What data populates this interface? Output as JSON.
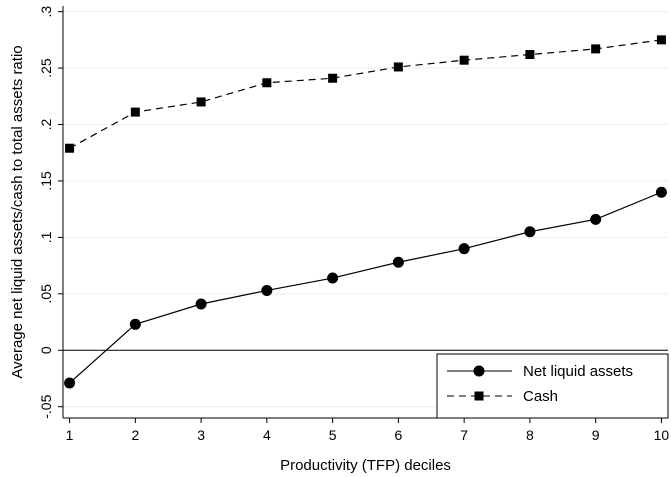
{
  "chart_data": {
    "type": "line",
    "xlabel": "Productivity (TFP) deciles",
    "ylabel": "Average net liquid assets/cash to total assets ratio",
    "x": [
      1,
      2,
      3,
      4,
      5,
      6,
      7,
      8,
      9,
      10
    ],
    "x_tick_labels": [
      "1",
      "2",
      "3",
      "4",
      "5",
      "6",
      "7",
      "8",
      "9",
      "10"
    ],
    "y_ticks": [
      -0.05,
      0,
      0.05,
      0.1,
      0.15,
      0.2,
      0.25,
      0.3
    ],
    "y_tick_labels": [
      "-.05",
      "0",
      ".05",
      ".1",
      ".15",
      ".2",
      ".25",
      ".3"
    ],
    "xlim": [
      0.9,
      10.1
    ],
    "ylim": [
      -0.06,
      0.305
    ],
    "zero_line": true,
    "grid": "horizontal",
    "legend_position": "bottom-right",
    "series": [
      {
        "name": "Net liquid assets",
        "marker": "circle",
        "line_style": "solid",
        "color": "#000000",
        "values": [
          -0.029,
          0.023,
          0.041,
          0.053,
          0.064,
          0.078,
          0.09,
          0.105,
          0.116,
          0.14
        ]
      },
      {
        "name": "Cash",
        "marker": "square",
        "line_style": "dashed",
        "color": "#000000",
        "values": [
          0.179,
          0.211,
          0.22,
          0.237,
          0.241,
          0.251,
          0.257,
          0.262,
          0.267,
          0.275
        ]
      }
    ]
  }
}
